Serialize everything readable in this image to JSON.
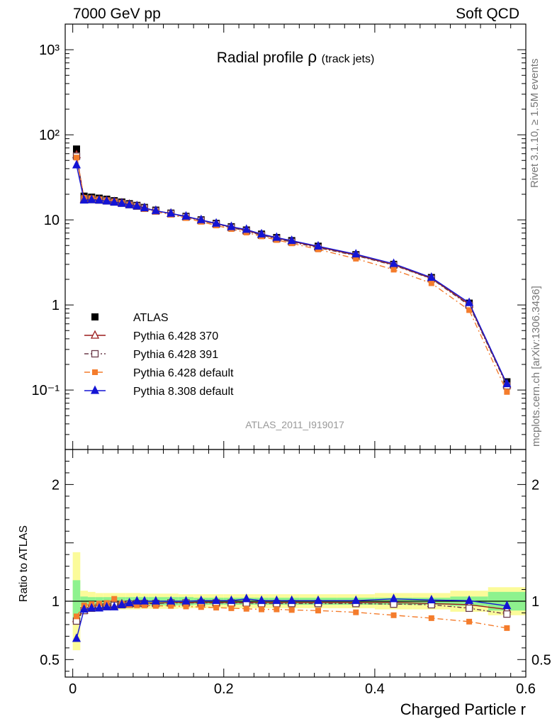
{
  "header": {
    "left": "7000 GeV pp",
    "right": "Soft QCD"
  },
  "side_labels": {
    "top": "Rivet 3.1.10, ≥ 1.5M events",
    "bottom": "mcplots.cern.ch [arXiv:1306.3436]"
  },
  "chart_data": {
    "type": "line",
    "title": "Radial profile",
    "title_symbol": "ρ",
    "title_suffix": "(track jets)",
    "analysis_tag": "ATLAS_2011_I919017",
    "xlabel": "Charged Particle r",
    "ratio_ylabel": "Ratio to ATLAS",
    "xlim": [
      -0.01,
      0.6
    ],
    "main_ylim": [
      0.02,
      2000
    ],
    "main_yscale": "log",
    "ratio_ylim": [
      0.35,
      2.3
    ],
    "main_yticks": [
      "10⁻¹",
      "1",
      "10",
      "10²",
      "10³"
    ],
    "main_ytick_values": [
      0.1,
      1,
      10,
      100,
      1000
    ],
    "ratio_yticks": [
      "0.5",
      "1",
      "2"
    ],
    "ratio_ytick_values": [
      0.5,
      1,
      2
    ],
    "xticks": [
      "0",
      "0.2",
      "0.4",
      "0.6"
    ],
    "xtick_values": [
      0,
      0.2,
      0.4,
      0.6
    ],
    "legend_position": "lower-left",
    "x": [
      0.005,
      0.015,
      0.025,
      0.035,
      0.045,
      0.055,
      0.065,
      0.075,
      0.085,
      0.095,
      0.11,
      0.13,
      0.15,
      0.17,
      0.19,
      0.21,
      0.23,
      0.25,
      0.27,
      0.29,
      0.325,
      0.375,
      0.425,
      0.475,
      0.525,
      0.575
    ],
    "x_edges": [
      0,
      0.01,
      0.02,
      0.03,
      0.04,
      0.05,
      0.06,
      0.07,
      0.08,
      0.09,
      0.1,
      0.12,
      0.14,
      0.16,
      0.18,
      0.2,
      0.22,
      0.24,
      0.26,
      0.28,
      0.3,
      0.35,
      0.4,
      0.45,
      0.5,
      0.55,
      0.6
    ],
    "data": {
      "name": "ATLAS",
      "color": "#000000",
      "values": [
        68,
        19,
        18.5,
        18,
        17.5,
        16.8,
        16.2,
        15.5,
        14.8,
        14,
        13,
        12,
        11,
        10,
        9.1,
        8.3,
        7.6,
        6.8,
        6.2,
        5.7,
        4.9,
        3.9,
        3.0,
        2.1,
        1.05,
        0.125
      ]
    },
    "bands": {
      "stat_color": "#8ef28e",
      "syst_color": "#fbfb9a",
      "stat_halfwidth": [
        0.18,
        0.04,
        0.035,
        0.035,
        0.035,
        0.035,
        0.035,
        0.035,
        0.035,
        0.035,
        0.035,
        0.035,
        0.035,
        0.03,
        0.03,
        0.03,
        0.03,
        0.03,
        0.03,
        0.03,
        0.03,
        0.03,
        0.03,
        0.03,
        0.04,
        0.08
      ],
      "syst_halfwidth": [
        0.42,
        0.09,
        0.08,
        0.07,
        0.07,
        0.07,
        0.07,
        0.07,
        0.07,
        0.065,
        0.065,
        0.065,
        0.06,
        0.06,
        0.06,
        0.06,
        0.06,
        0.06,
        0.06,
        0.06,
        0.06,
        0.06,
        0.07,
        0.07,
        0.09,
        0.12
      ]
    },
    "series": [
      {
        "name": "Pythia 6.428 370",
        "color": "#9b1b1b",
        "dash": "",
        "marker": "triangle-open",
        "values": [
          58,
          17.5,
          17.4,
          17.2,
          16.8,
          16.3,
          15.8,
          15.2,
          14.6,
          13.8,
          12.8,
          11.9,
          10.9,
          9.9,
          9.0,
          8.2,
          7.5,
          6.7,
          6.1,
          5.6,
          4.8,
          3.85,
          2.97,
          2.05,
          1.02,
          0.115
        ],
        "ratio": [
          0.85,
          0.92,
          0.94,
          0.955,
          0.96,
          0.97,
          0.975,
          0.98,
          0.985,
          0.985,
          0.985,
          0.99,
          0.99,
          0.99,
          0.99,
          0.99,
          0.99,
          0.99,
          0.99,
          0.99,
          0.99,
          0.99,
          0.99,
          0.98,
          0.97,
          0.93
        ]
      },
      {
        "name": "Pythia 6.428 391",
        "color": "#6b3b4a",
        "dash": "6,3,2,3",
        "marker": "square-open",
        "values": [
          56,
          17.4,
          17.3,
          17.1,
          16.7,
          16.2,
          15.7,
          15.1,
          14.5,
          13.7,
          12.7,
          11.8,
          10.8,
          9.8,
          8.9,
          8.1,
          7.4,
          6.6,
          6.0,
          5.5,
          4.7,
          3.8,
          2.93,
          2.03,
          0.99,
          0.112
        ],
        "ratio": [
          0.83,
          0.92,
          0.94,
          0.95,
          0.955,
          0.965,
          0.97,
          0.975,
          0.98,
          0.98,
          0.98,
          0.985,
          0.985,
          0.985,
          0.985,
          0.985,
          0.985,
          0.98,
          0.98,
          0.98,
          0.98,
          0.98,
          0.975,
          0.97,
          0.94,
          0.89
        ]
      },
      {
        "name": "Pythia 6.428 default",
        "color": "#f47c2c",
        "dash": "8,4,2,4",
        "marker": "square-filled",
        "values": [
          54,
          18.2,
          18.0,
          17.5,
          17.0,
          16.5,
          15.8,
          15.0,
          14.3,
          13.4,
          12.5,
          11.5,
          10.5,
          9.5,
          8.6,
          7.8,
          7.1,
          6.4,
          5.8,
          5.3,
          4.5,
          3.5,
          2.6,
          1.8,
          0.87,
          0.095
        ],
        "ratio": [
          0.87,
          0.965,
          0.975,
          0.98,
          0.985,
          1.02,
          0.98,
          0.97,
          0.965,
          0.965,
          0.96,
          0.96,
          0.955,
          0.95,
          0.945,
          0.94,
          0.935,
          0.93,
          0.93,
          0.925,
          0.92,
          0.905,
          0.88,
          0.855,
          0.825,
          0.77
        ]
      },
      {
        "name": "Pythia 8.308 default",
        "color": "#1414d4",
        "dash": "",
        "marker": "triangle-filled",
        "values": [
          44,
          17.0,
          17.2,
          17.0,
          16.6,
          16.1,
          15.6,
          15.0,
          14.5,
          13.8,
          12.8,
          11.9,
          11.0,
          10.0,
          9.1,
          8.3,
          7.7,
          6.8,
          6.2,
          5.7,
          4.9,
          3.95,
          3.05,
          2.1,
          1.06,
          0.118
        ],
        "ratio": [
          0.68,
          0.93,
          0.94,
          0.94,
          0.95,
          0.95,
          0.97,
          0.985,
          1.0,
          1.0,
          1.0,
          1.0,
          1.0,
          1.005,
          1.005,
          1.005,
          1.02,
          1.005,
          1.005,
          1.005,
          1.005,
          1.005,
          1.02,
          1.01,
          1.005,
          0.96
        ]
      }
    ]
  }
}
